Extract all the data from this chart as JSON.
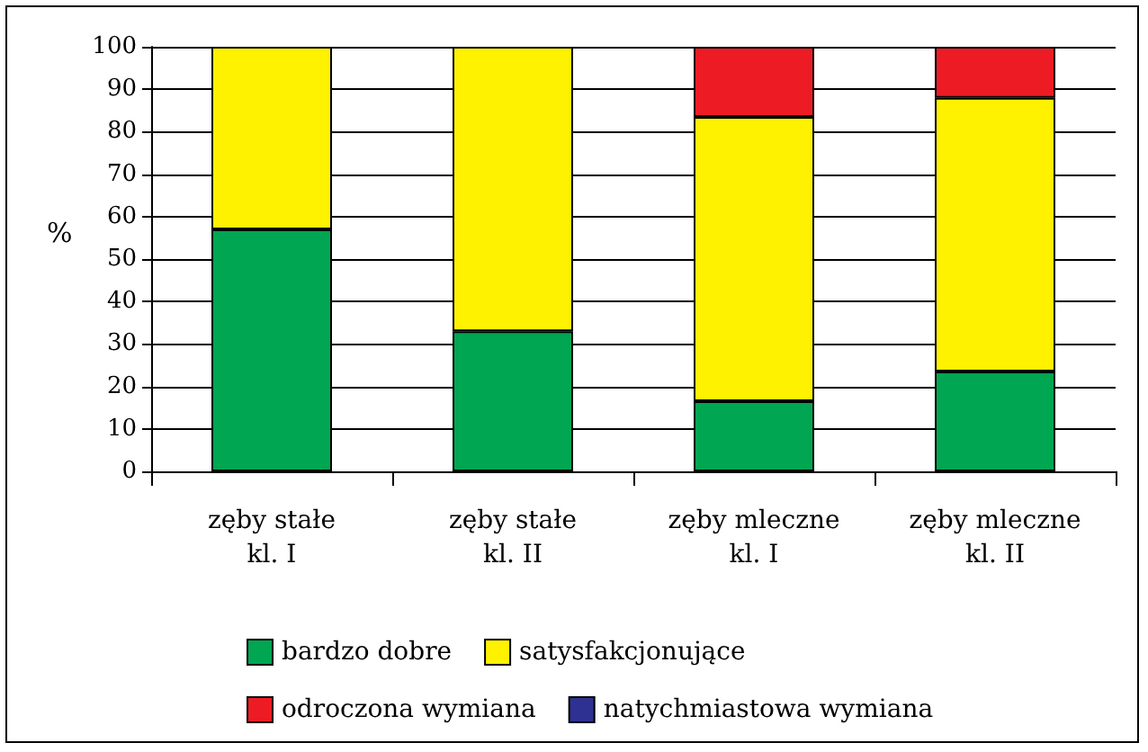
{
  "chart_data": {
    "type": "bar",
    "stacked": true,
    "ylabel": "%",
    "categories": [
      "zęby stałe\nkl. I",
      "zęby stałe\nkl. II",
      "zęby mleczne\nkl. I",
      "zęby mleczne\nkl. II"
    ],
    "series": [
      {
        "name": "bardzo dobre",
        "color": "#00a651",
        "values": [
          57,
          33,
          16.5,
          23.5
        ]
      },
      {
        "name": "satysfakcjonujące",
        "color": "#fff200",
        "values": [
          43,
          67,
          67,
          64.5
        ]
      },
      {
        "name": "odroczona wymiana",
        "color": "#ed1c24",
        "values": [
          0,
          0,
          16.5,
          12
        ]
      },
      {
        "name": "natychmiastowa wymiana",
        "color": "#2e3192",
        "values": [
          0,
          0,
          0,
          0
        ]
      }
    ],
    "ylim": [
      0,
      100
    ],
    "yticks": [
      0,
      10,
      20,
      30,
      40,
      50,
      60,
      70,
      80,
      90,
      100
    ],
    "grid": "y",
    "legend": "bottom"
  }
}
